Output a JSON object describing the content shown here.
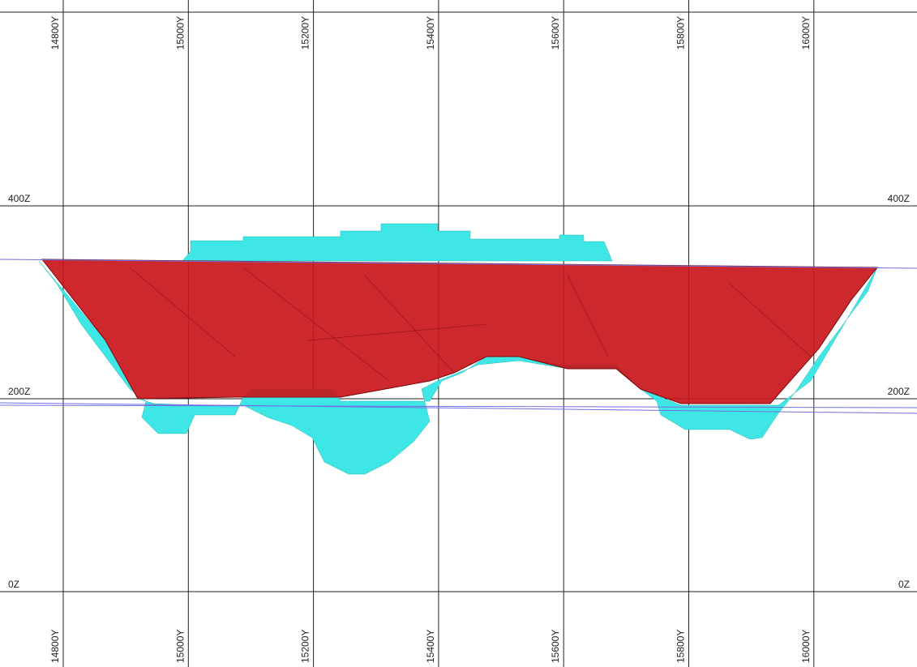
{
  "grid": {
    "y_labels_top": [
      "14800Y",
      "15000Y",
      "15200Y",
      "15400Y",
      "15600Y",
      "15800Y",
      "16000Y"
    ],
    "y_labels_bottom": [
      "14800Y",
      "15000Y",
      "15200Y",
      "15400Y",
      "15600Y",
      "15800Y",
      "16000Y"
    ],
    "z_labels_left": [
      "400Z",
      "200Z",
      "0Z"
    ],
    "z_labels_right": [
      "400Z",
      "200Z",
      "0Z"
    ]
  }
}
